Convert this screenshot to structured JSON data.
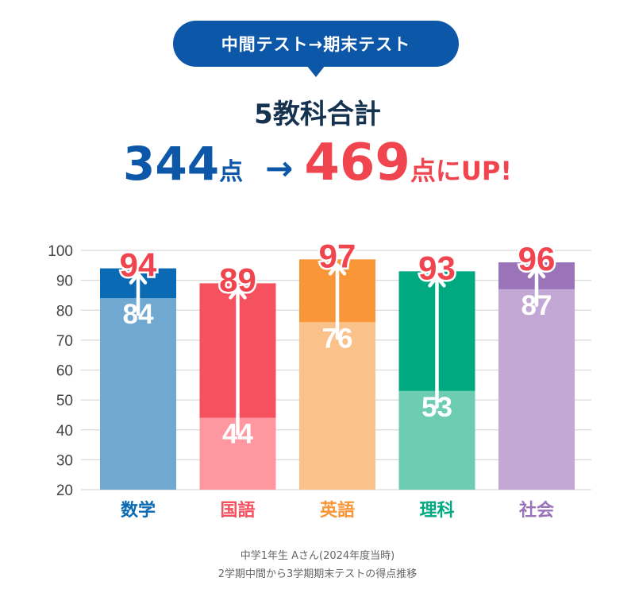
{
  "header": {
    "pill_label": "中間テスト→期末テスト",
    "subtitle": "5教科合計",
    "total_from": "344",
    "unit": "点",
    "arrow": "→",
    "total_to": "469",
    "suffix": "点にUP!"
  },
  "footnote": {
    "line1": "中学1年生 Aさん(2024年度当時)",
    "line2": "2学期中間から3学期期末テストの得点推移"
  },
  "chart_data": {
    "type": "bar",
    "categories": [
      "数学",
      "国語",
      "英語",
      "理科",
      "社会"
    ],
    "series": [
      {
        "values": [
          84,
          44,
          76,
          53,
          87
        ]
      },
      {
        "values": [
          94,
          89,
          97,
          93,
          96
        ]
      }
    ],
    "ylim": [
      20,
      100
    ],
    "yticks": [
      20,
      30,
      40,
      50,
      60,
      70,
      80,
      90,
      100
    ],
    "grid": true,
    "colors": {
      "before": [
        "#70a8d2",
        "#ff97a1",
        "#fbc18b",
        "#6ccdb2",
        "#c3a7d5"
      ],
      "after": [
        "#0a6ab4",
        "#f5515f",
        "#f99637",
        "#00a980",
        "#9b73b8"
      ],
      "label_after": "#f0454f",
      "label_before": "#ffffff"
    }
  }
}
